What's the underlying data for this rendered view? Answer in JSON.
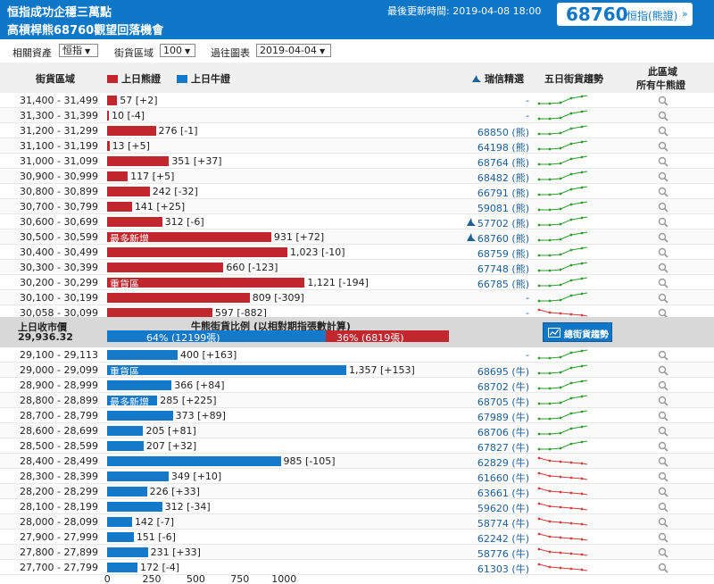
{
  "header": {
    "title1": "恒指成功企穩三萬點",
    "title2": "高槓桿熊68760觀望回落機會",
    "updated_label": "最後更新時間:",
    "updated_value": "2019-04-08 18:00",
    "code": "68760",
    "code_label": "恒指(熊證)",
    "code_arrow": "»"
  },
  "controls": {
    "asset_label": "相關資產",
    "asset_value": "恒指",
    "zone_label": "街貨區域",
    "zone_value": "100",
    "chart_label": "過往圖表",
    "chart_value": "2019-04-04"
  },
  "columns": {
    "zone": "街貨區域",
    "bear_legend": "上日熊證",
    "bull_legend": "上日牛證",
    "pick": "瑞信精選",
    "trend": "五日街貨趨勢",
    "all1": "此區域",
    "all2": "所有牛熊證"
  },
  "colors": {
    "bear": "#c1272d",
    "bull": "#1479c9",
    "header": "#0e77c8",
    "spark_up": "#2e9d2e",
    "spark_down": "#d43b3b"
  },
  "bear_rows": [
    {
      "range": "31,400 - 31,499",
      "value": 57,
      "label": "57 [+2]",
      "pick": "-",
      "spark": "up"
    },
    {
      "range": "31,300 - 31,399",
      "value": 10,
      "label": "10 [-4]",
      "pick": "-",
      "spark": "up"
    },
    {
      "range": "31,200 - 31,299",
      "value": 276,
      "label": "276 [-1]",
      "pick": "68850 (熊)",
      "spark": "up"
    },
    {
      "range": "31,100 - 31,199",
      "value": 13,
      "label": "13 [+5]",
      "pick": "64198 (熊)",
      "spark": "up"
    },
    {
      "range": "31,000 - 31,099",
      "value": 351,
      "label": "351 [+37]",
      "pick": "68764 (熊)",
      "spark": "up"
    },
    {
      "range": "30,900 - 30,999",
      "value": 117,
      "label": "117 [+5]",
      "pick": "68482 (熊)",
      "spark": "up"
    },
    {
      "range": "30,800 - 30,899",
      "value": 242,
      "label": "242 [-32]",
      "pick": "66791 (熊)",
      "spark": "up"
    },
    {
      "range": "30,700 - 30,799",
      "value": 141,
      "label": "141 [+25]",
      "pick": "59081 (熊)",
      "spark": "up"
    },
    {
      "range": "30,600 - 30,699",
      "value": 312,
      "label": "312 [-6]",
      "pick": "57702 (熊)",
      "spark": "up",
      "pick_icon": true
    },
    {
      "range": "30,500 - 30,599",
      "value": 931,
      "label": "931 [+72]",
      "pick": "68760 (熊)",
      "spark": "up",
      "pick_icon": true,
      "tag": "最多新增"
    },
    {
      "range": "30,400 - 30,499",
      "value": 1023,
      "label": "1,023 [-10]",
      "pick": "68759 (熊)",
      "spark": "up"
    },
    {
      "range": "30,300 - 30,399",
      "value": 660,
      "label": "660 [-123]",
      "pick": "67748 (熊)",
      "spark": "up"
    },
    {
      "range": "30,200 - 30,299",
      "value": 1121,
      "label": "1,121 [-194]",
      "pick": "66785 (熊)",
      "spark": "up",
      "tag": "重貨區"
    },
    {
      "range": "30,100 - 30,199",
      "value": 809,
      "label": "809 [-309]",
      "pick": "-",
      "spark": "up"
    },
    {
      "range": "30,058 - 30,099",
      "value": 597,
      "label": "597 [-882]",
      "pick": "-",
      "spark": "down"
    }
  ],
  "mid": {
    "prev_close_label": "上日收市價",
    "prev_close_value": "29,936.32",
    "ratio_title": "牛熊街貨比例 (以相對期指張數計算)",
    "bull_pct": 64,
    "bull_label": "64% (12199張)",
    "bear_label": "36% (6819張)",
    "trend_button": "總街貨趨勢"
  },
  "bull_rows": [
    {
      "range": "29,100 - 29,113",
      "value": 400,
      "label": "400 [+163]",
      "pick": "-",
      "spark": "up"
    },
    {
      "range": "29,000 - 29,099",
      "value": 1357,
      "label": "1,357 [+153]",
      "pick": "68695 (牛)",
      "spark": "up",
      "tag": "重貨區"
    },
    {
      "range": "28,900 - 28,999",
      "value": 366,
      "label": "366 [+84]",
      "pick": "68702 (牛)",
      "spark": "up"
    },
    {
      "range": "28,800 - 28,899",
      "value": 285,
      "label": "285 [+225]",
      "pick": "68705 (牛)",
      "spark": "up",
      "tag": "最多新增"
    },
    {
      "range": "28,700 - 28,799",
      "value": 373,
      "label": "373 [+89]",
      "pick": "67989 (牛)",
      "spark": "up"
    },
    {
      "range": "28,600 - 28,699",
      "value": 205,
      "label": "205 [+81]",
      "pick": "68706 (牛)",
      "spark": "up"
    },
    {
      "range": "28,500 - 28,599",
      "value": 207,
      "label": "207 [+32]",
      "pick": "67827 (牛)",
      "spark": "up"
    },
    {
      "range": "28,400 - 28,499",
      "value": 985,
      "label": "985 [-105]",
      "pick": "62829 (牛)",
      "spark": "down"
    },
    {
      "range": "28,300 - 28,399",
      "value": 349,
      "label": "349 [+10]",
      "pick": "61660 (牛)",
      "spark": "down"
    },
    {
      "range": "28,200 - 28,299",
      "value": 226,
      "label": "226 [+33]",
      "pick": "63661 (牛)",
      "spark": "down"
    },
    {
      "range": "28,100 - 28,199",
      "value": 312,
      "label": "312 [-34]",
      "pick": "59620 (牛)",
      "spark": "down"
    },
    {
      "range": "28,000 - 28,099",
      "value": 142,
      "label": "142 [-7]",
      "pick": "58774 (牛)",
      "spark": "down"
    },
    {
      "range": "27,900 - 27,999",
      "value": 151,
      "label": "151 [-6]",
      "pick": "62242 (牛)",
      "spark": "down"
    },
    {
      "range": "27,800 - 27,899",
      "value": 231,
      "label": "231 [+33]",
      "pick": "58776 (牛)",
      "spark": "down"
    },
    {
      "range": "27,700 - 27,799",
      "value": 172,
      "label": "172 [-4]",
      "pick": "61303 (牛)",
      "spark": "down"
    }
  ],
  "axis_ticks": [
    "0",
    "250",
    "500",
    "750",
    "1000"
  ],
  "icons": {
    "magnifier": "magnifier-icon",
    "pick": "trader-icon",
    "trend": "chart-icon",
    "dropdown": "triangle-down-icon"
  }
}
